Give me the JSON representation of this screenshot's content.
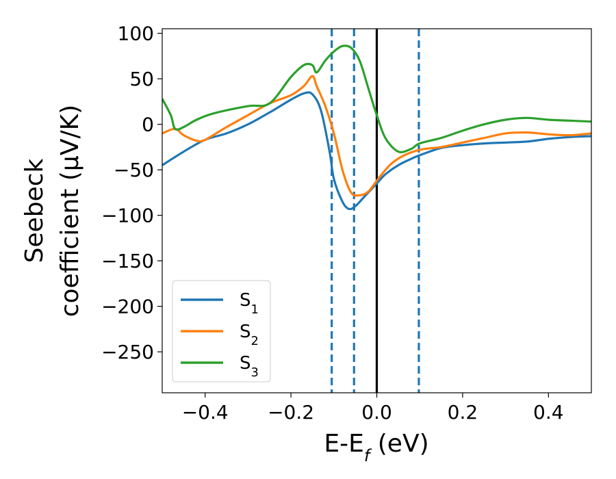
{
  "chart_data": {
    "type": "line",
    "xlabel_main": "E-E",
    "xlabel_sub": "f",
    "xlabel_unit": " (eV)",
    "ylabel_line1": "Seebeck",
    "ylabel_line2": "coefficient  (μV/K)",
    "xlim": [
      -0.5,
      0.5
    ],
    "ylim": [
      -295,
      105
    ],
    "xticks": [
      -0.4,
      -0.2,
      0.0,
      0.2,
      0.4
    ],
    "xtick_labels": [
      "−0.4",
      "−0.2",
      "0.0",
      "0.2",
      "0.4"
    ],
    "yticks": [
      100,
      50,
      0,
      -50,
      -100,
      -150,
      -200,
      -250
    ],
    "ytick_labels": [
      "100",
      "50",
      "0",
      "−50",
      "−100",
      "−150",
      "−200",
      "−250"
    ],
    "grid": false,
    "legend_position": "lower-left",
    "vlines": [
      {
        "x": 0.0,
        "style": "solid",
        "color": "#000000"
      },
      {
        "x": -0.105,
        "style": "dashed",
        "color": "#1f77b4"
      },
      {
        "x": -0.053,
        "style": "dashed",
        "color": "#1f77b4"
      },
      {
        "x": 0.098,
        "style": "dashed",
        "color": "#1f77b4"
      }
    ],
    "series": [
      {
        "name": "S",
        "name_sub": "1",
        "color": "#1f77b4",
        "x": [
          -0.5,
          -0.45,
          -0.4,
          -0.35,
          -0.3,
          -0.25,
          -0.2,
          -0.17,
          -0.15,
          -0.13,
          -0.11,
          -0.1,
          -0.08,
          -0.065,
          -0.05,
          -0.03,
          -0.01,
          0.0,
          0.02,
          0.05,
          0.08,
          0.1,
          0.15,
          0.2,
          0.25,
          0.3,
          0.35,
          0.4,
          0.45,
          0.5
        ],
        "y": [
          -45,
          -30,
          -17,
          -10,
          0,
          13,
          27,
          34,
          33,
          15,
          -30,
          -60,
          -85,
          -93,
          -90,
          -80,
          -70,
          -65,
          -55,
          -45,
          -38,
          -34,
          -26,
          -23,
          -21,
          -20,
          -19,
          -16,
          -14,
          -13
        ]
      },
      {
        "name": "S",
        "name_sub": "2",
        "color": "#ff7f0e",
        "x": [
          -0.5,
          -0.47,
          -0.45,
          -0.42,
          -0.4,
          -0.35,
          -0.3,
          -0.25,
          -0.2,
          -0.17,
          -0.15,
          -0.14,
          -0.12,
          -0.1,
          -0.08,
          -0.06,
          -0.04,
          -0.02,
          0.0,
          0.03,
          0.06,
          0.1,
          0.15,
          0.2,
          0.25,
          0.3,
          0.35,
          0.4,
          0.45,
          0.5
        ],
        "y": [
          -10,
          -5,
          -12,
          -18,
          -17,
          -3,
          10,
          23,
          32,
          42,
          53,
          42,
          20,
          -10,
          -50,
          -75,
          -78,
          -74,
          -62,
          -45,
          -35,
          -28,
          -25,
          -20,
          -15,
          -10,
          -9,
          -11,
          -12,
          -10
        ]
      },
      {
        "name": "S",
        "name_sub": "3",
        "color": "#2ca02c",
        "x": [
          -0.5,
          -0.48,
          -0.47,
          -0.45,
          -0.42,
          -0.38,
          -0.3,
          -0.25,
          -0.2,
          -0.17,
          -0.15,
          -0.14,
          -0.12,
          -0.1,
          -0.08,
          -0.06,
          -0.04,
          -0.02,
          0.0,
          0.02,
          0.05,
          0.08,
          0.1,
          0.15,
          0.2,
          0.25,
          0.3,
          0.35,
          0.4,
          0.45,
          0.5
        ],
        "y": [
          28,
          10,
          -5,
          -3,
          5,
          12,
          20,
          23,
          52,
          65,
          65,
          57,
          70,
          80,
          86,
          84,
          70,
          40,
          10,
          -15,
          -30,
          -27,
          -21,
          -15,
          -7,
          0,
          5,
          7,
          5,
          4,
          3
        ]
      }
    ]
  }
}
